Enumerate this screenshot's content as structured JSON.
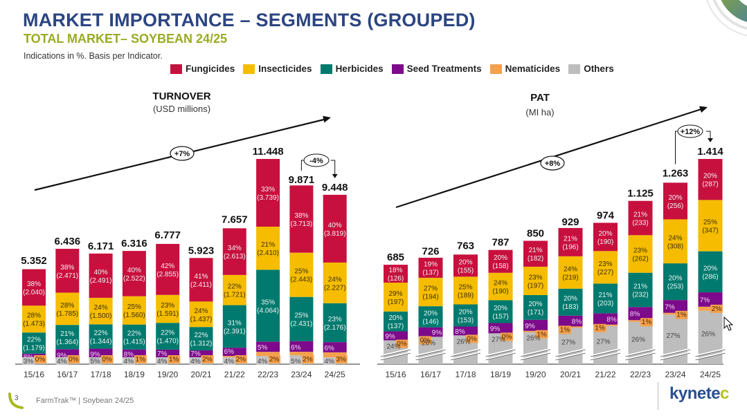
{
  "header": {
    "title": "MARKET IMPORTANCE – SEGMENTS (GROUPED)",
    "subtitle": "TOTAL MARKET– SOYBEAN 24/25",
    "note": "Indications in %. Basis per Indicator."
  },
  "legend": [
    {
      "label": "Fungicides",
      "color": "#c8103e"
    },
    {
      "label": "Insecticides",
      "color": "#f6bd00"
    },
    {
      "label": "Herbicides",
      "color": "#007a6e"
    },
    {
      "label": "Seed Treatments",
      "color": "#7d0a8a"
    },
    {
      "label": "Nematicides",
      "color": "#f4a04c"
    },
    {
      "label": "Others",
      "color": "#bdbdbd"
    }
  ],
  "footer": {
    "page": "3",
    "text": "FarmTrak™ | Soybean 24/25",
    "logo_main": "kynete",
    "logo_end": "c"
  },
  "chart_data": [
    {
      "type": "bar",
      "stacked": true,
      "title": "TURNOVER",
      "subtitle": "(USD millions)",
      "categories": [
        "15/16",
        "16/17",
        "17/18",
        "18/19",
        "19/20",
        "20/21",
        "21/22",
        "22/23",
        "23/24",
        "24/25"
      ],
      "totals": [
        "5.352",
        "6.436",
        "6.171",
        "6.316",
        "6.777",
        "5.923",
        "7.657",
        "11.448",
        "9.871",
        "9.448"
      ],
      "total_values": [
        5352,
        6436,
        6171,
        6316,
        6777,
        5923,
        7657,
        11448,
        9871,
        9448
      ],
      "trend_label": "+7%",
      "change_label": "-4%",
      "series": [
        {
          "name": "Others",
          "pct": [
            3,
            4,
            5,
            4,
            4,
            4,
            4,
            4,
            5,
            4
          ]
        },
        {
          "name": "Nematicides",
          "pct": [
            0,
            0,
            0,
            1,
            1,
            2,
            2,
            2,
            2,
            3
          ]
        },
        {
          "name": "Seed Treatments",
          "pct": [
            8,
            9,
            9,
            8,
            7,
            7,
            6,
            5,
            6,
            6
          ]
        },
        {
          "name": "Herbicides",
          "pct": [
            22,
            21,
            22,
            22,
            22,
            22,
            31,
            35,
            25,
            23
          ],
          "values": [
            "1.179",
            "1.364",
            "1.344",
            "1.415",
            "1.470",
            "1.312",
            "2.391",
            "4.064",
            "2.431",
            "2.176"
          ]
        },
        {
          "name": "Insecticides",
          "pct": [
            28,
            28,
            24,
            25,
            23,
            24,
            22,
            21,
            25,
            24
          ],
          "values": [
            "1.473",
            "1.785",
            "1.500",
            "1.560",
            "1.591",
            "1.437",
            "1.721",
            "2.410",
            "2.443",
            "2.227"
          ]
        },
        {
          "name": "Fungicides",
          "pct": [
            38,
            38,
            40,
            40,
            42,
            41,
            34,
            33,
            38,
            40
          ],
          "values": [
            "2.040",
            "2.471",
            "2.491",
            "2.522",
            "2.855",
            "2.411",
            "2.613",
            "3.739",
            "3.713",
            "3.819"
          ]
        }
      ]
    },
    {
      "type": "bar",
      "stacked": true,
      "title": "PAT",
      "subtitle": "(MI ha)",
      "categories": [
        "15/16",
        "16/17",
        "17/18",
        "18/19",
        "19/20",
        "20/21",
        "21/22",
        "22/23",
        "23/24",
        "24/25"
      ],
      "totals": [
        "685",
        "726",
        "763",
        "787",
        "850",
        "929",
        "974",
        "1.125",
        "1.263",
        "1.414"
      ],
      "total_values": [
        685,
        726,
        763,
        787,
        850,
        929,
        974,
        1125,
        1263,
        1414
      ],
      "trend_label": "+8%",
      "change_label": "+12%",
      "axis_break": true,
      "series": [
        {
          "name": "Others",
          "pct": [
            24,
            26,
            26,
            27,
            26,
            27,
            27,
            26,
            27,
            26
          ]
        },
        {
          "name": "Nematicides",
          "pct": [
            0,
            0,
            0,
            0,
            1,
            1,
            1,
            1,
            1,
            2
          ]
        },
        {
          "name": "Seed Treatments",
          "pct": [
            9,
            9,
            8,
            9,
            9,
            8,
            8,
            8,
            7,
            7
          ]
        },
        {
          "name": "Herbicides",
          "pct": [
            20,
            20,
            20,
            20,
            20,
            20,
            21,
            21,
            20,
            20
          ],
          "values": [
            "137",
            "146",
            "153",
            "157",
            "171",
            "183",
            "203",
            "232",
            "253",
            "286"
          ]
        },
        {
          "name": "Insecticides",
          "pct": [
            29,
            27,
            25,
            24,
            23,
            24,
            23,
            23,
            24,
            25
          ],
          "values": [
            "197",
            "194",
            "189",
            "190",
            "197",
            "219",
            "227",
            "262",
            "308",
            "347"
          ]
        },
        {
          "name": "Fungicides",
          "pct": [
            18,
            19,
            20,
            20,
            21,
            21,
            20,
            21,
            20,
            20
          ],
          "values": [
            "126",
            "137",
            "155",
            "158",
            "182",
            "196",
            "190",
            "233",
            "256",
            "287"
          ]
        }
      ]
    }
  ]
}
